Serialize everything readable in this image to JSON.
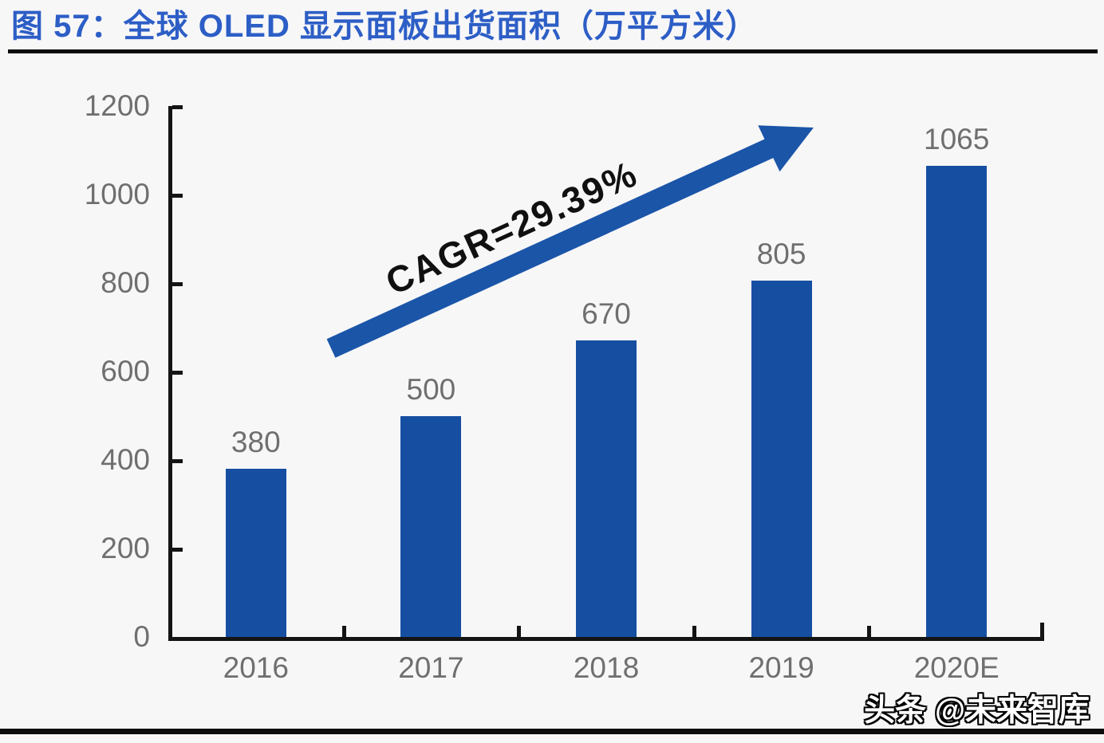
{
  "page": {
    "watermark": "头条 @未来智库"
  },
  "chart_data": {
    "type": "bar",
    "title": "图 57：全球 OLED 显示面板出货面积（万平方米）",
    "categories": [
      "2016",
      "2017",
      "2018",
      "2019",
      "2020E"
    ],
    "values": [
      380,
      500,
      670,
      805,
      1065
    ],
    "xlabel": "",
    "ylabel": "",
    "ylim": [
      0,
      1200
    ],
    "yticks": [
      0,
      200,
      400,
      600,
      800,
      1000,
      1200
    ],
    "grid": false,
    "legend": "none",
    "annotation": "CAGR=29.39%",
    "colors": {
      "bar": "#164fa2",
      "arrow": "#1b55a8",
      "title": "#2d5ec6",
      "labels": "#6f6f6f",
      "axis": "#141414"
    }
  }
}
